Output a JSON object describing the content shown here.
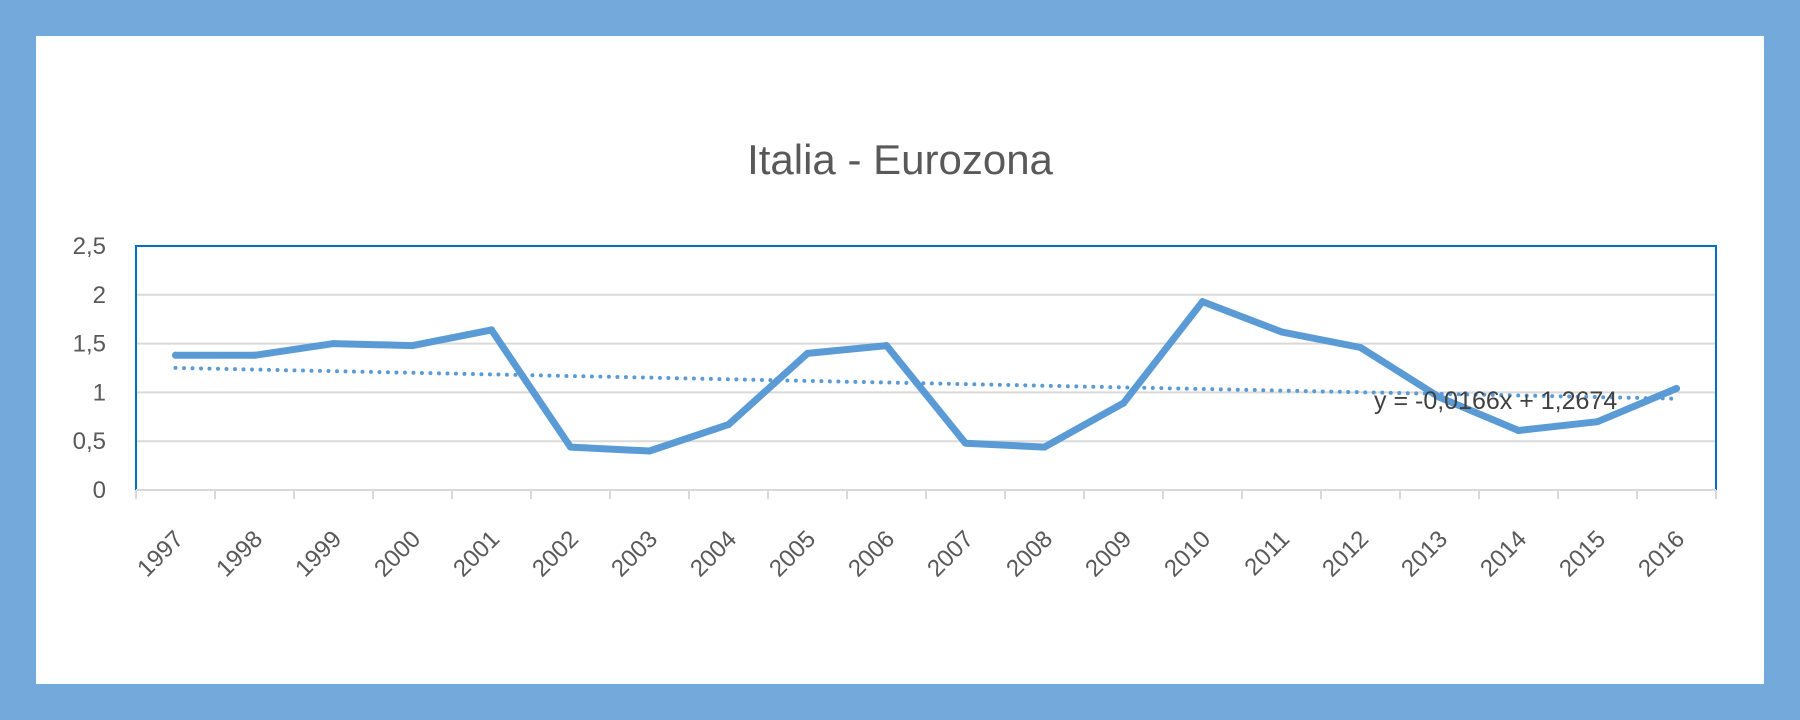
{
  "chart_data": {
    "type": "line",
    "title": "Italia - Eurozona",
    "xlabel": "",
    "ylabel": "",
    "categories": [
      "1997",
      "1998",
      "1999",
      "2000",
      "2001",
      "2002",
      "2003",
      "2004",
      "2005",
      "2006",
      "2007",
      "2008",
      "2009",
      "2010",
      "2011",
      "2012",
      "2013",
      "2014",
      "2015",
      "2016"
    ],
    "series": [
      {
        "values": [
          1.38,
          1.38,
          1.5,
          1.48,
          1.64,
          0.44,
          0.4,
          0.67,
          1.4,
          1.48,
          0.48,
          0.44,
          0.89,
          1.93,
          1.62,
          1.46,
          0.95,
          0.61,
          0.7,
          1.04
        ]
      }
    ],
    "trendline": {
      "type": "linear",
      "slope": -0.0166,
      "intercept": 1.2674,
      "label": "y = -0,0166x + 1,2674",
      "style": "dotted"
    },
    "ylim": [
      0,
      2.5
    ],
    "yticks": [
      0,
      0.5,
      1,
      1.5,
      2,
      2.5
    ],
    "ytick_labels": [
      "0",
      "0,5",
      "1",
      "1,5",
      "2",
      "2,5"
    ],
    "grid": true,
    "legend": "none",
    "colors": {
      "series": "#5b9bd5",
      "frame_border": "#74a9dc",
      "plot_border": "#0070c0",
      "grid": "#d9d9d9",
      "text": "#595959"
    }
  }
}
